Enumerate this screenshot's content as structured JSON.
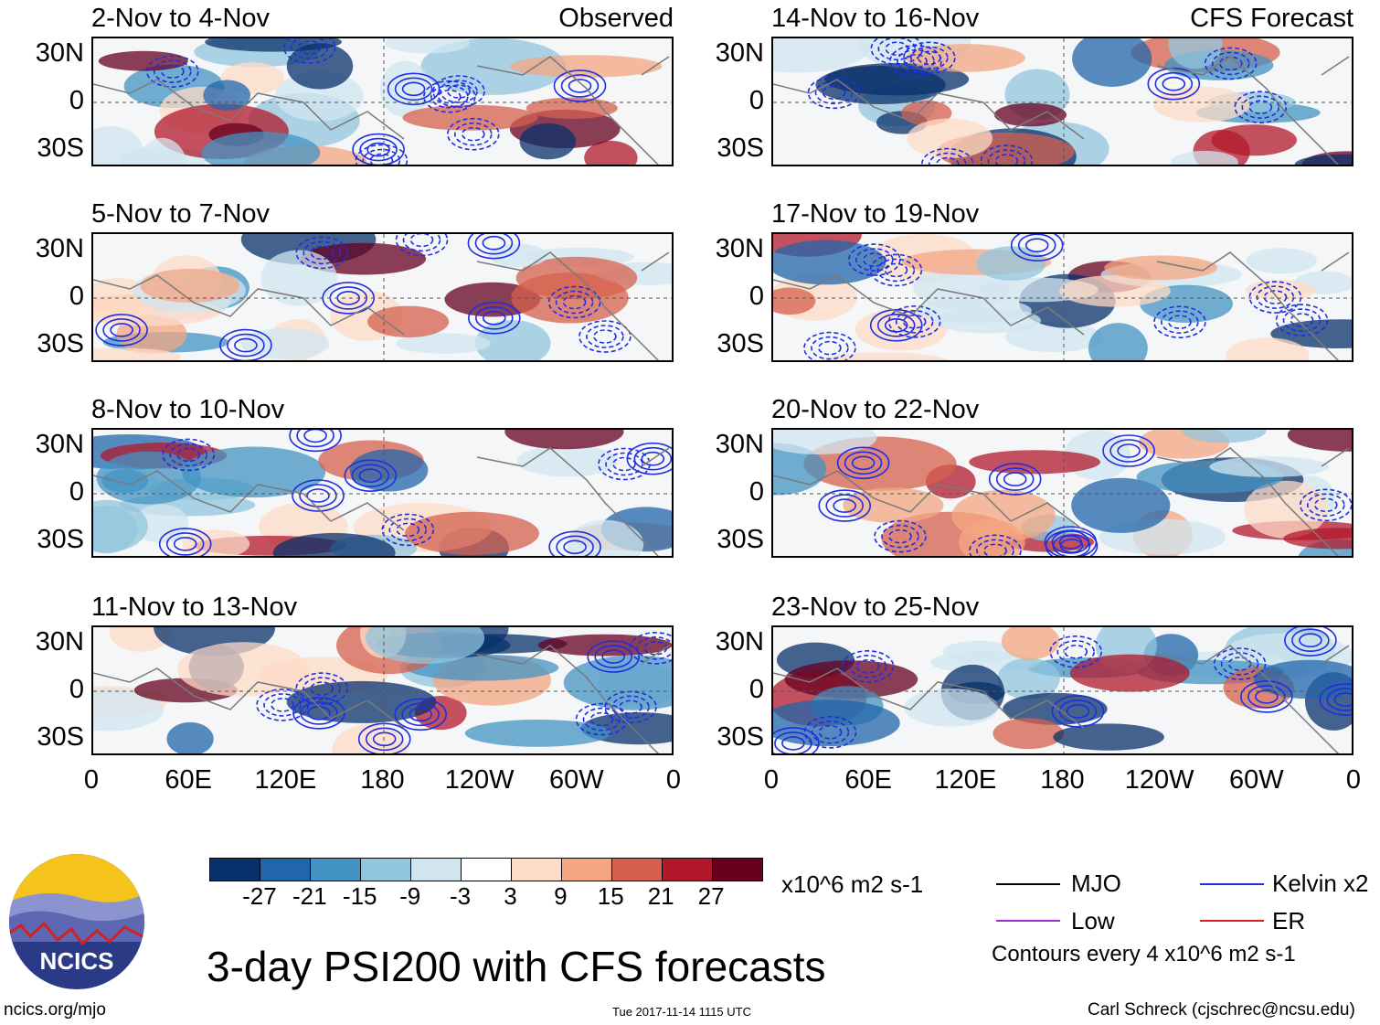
{
  "chart_data": {
    "type": "heatmap",
    "title": "3-day PSI200 with CFS forecasts",
    "variable": "PSI200",
    "columns": [
      "Observed",
      "CFS Forecast"
    ],
    "panels": [
      {
        "title": "2-Nov to 4-Nov",
        "tag": "Observed"
      },
      {
        "title": "5-Nov to 7-Nov",
        "tag": ""
      },
      {
        "title": "8-Nov to 10-Nov",
        "tag": ""
      },
      {
        "title": "11-Nov to 13-Nov",
        "tag": ""
      },
      {
        "title": "14-Nov to 16-Nov",
        "tag": "CFS Forecast"
      },
      {
        "title": "17-Nov to 19-Nov",
        "tag": ""
      },
      {
        "title": "20-Nov to 22-Nov",
        "tag": ""
      },
      {
        "title": "23-Nov to 25-Nov",
        "tag": ""
      }
    ],
    "lat_ticks": [
      "30N",
      "0",
      "30S"
    ],
    "lon_ticks": [
      "0",
      "60E",
      "120E",
      "180",
      "120W",
      "60W",
      "0"
    ],
    "colorbar": {
      "levels": [
        "-27",
        "-21",
        "-15",
        "-9",
        "-3",
        "3",
        "9",
        "15",
        "21",
        "27"
      ],
      "colors": [
        "#08306b",
        "#2166ac",
        "#4393c3",
        "#92c5de",
        "#d1e5f0",
        "#ffffff",
        "#fddbc7",
        "#f4a582",
        "#d6604d",
        "#b2182b",
        "#67001f"
      ],
      "units": "x10^6 m2 s-1"
    },
    "legend": [
      {
        "label": "MJO",
        "color": "#000000"
      },
      {
        "label": "Kelvin x2",
        "color": "#1f2ee0"
      },
      {
        "label": "Low",
        "color": "#9b30d9"
      },
      {
        "label": "ER",
        "color": "#d42020"
      }
    ],
    "contour_note": "Contours every 4 x10^6 m2 s-1"
  },
  "footer": {
    "website": "ncics.org/mjo",
    "timestamp": "Tue 2017-11-14 1115 UTC",
    "credit": "Carl Schreck (cjschrec@ncsu.edu)",
    "logo_text": "NCICS"
  }
}
